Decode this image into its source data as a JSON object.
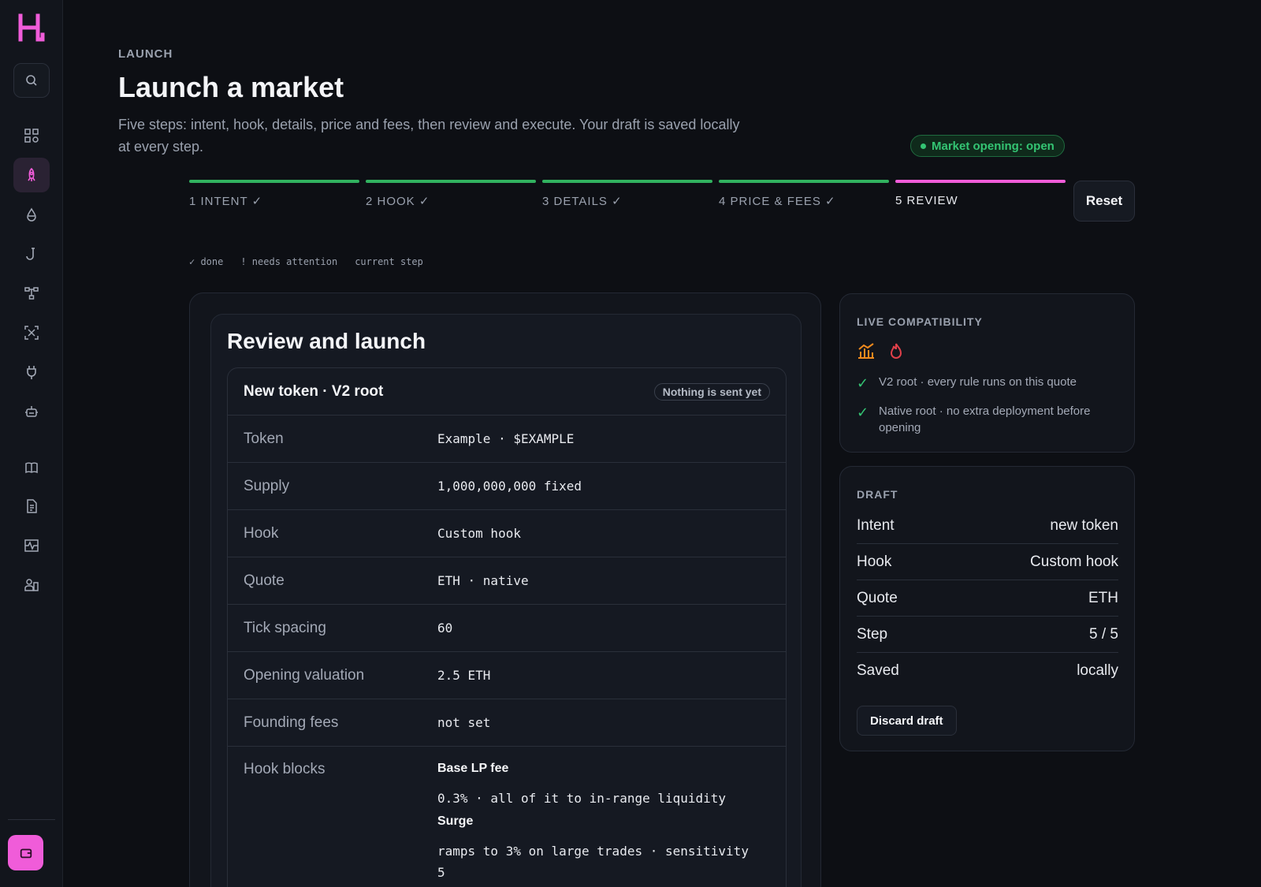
{
  "header": {
    "eyebrow": "LAUNCH",
    "title": "Launch a market",
    "subtitle": "Five steps: intent, hook, details, price and fees, then review and execute. Your draft is saved locally at every step.",
    "status": "Market opening: open"
  },
  "stepper": {
    "steps": [
      {
        "label": "1 INTENT ✓",
        "state": "done"
      },
      {
        "label": "2 HOOK ✓",
        "state": "done"
      },
      {
        "label": "3 DETAILS ✓",
        "state": "done"
      },
      {
        "label": "4 PRICE & FEES ✓",
        "state": "done"
      },
      {
        "label": "5 REVIEW",
        "state": "current"
      }
    ],
    "reset_label": "Reset",
    "legend": {
      "done": "✓ done",
      "attention": "! needs attention",
      "current": "current step"
    }
  },
  "review": {
    "title": "Review and launch",
    "summary_title": "New token · V2 root",
    "badge": "Nothing is sent yet",
    "rows": [
      {
        "key": "Token",
        "value": "Example · $EXAMPLE"
      },
      {
        "key": "Supply",
        "value": "1,000,000,000 fixed"
      },
      {
        "key": "Hook",
        "value": "Custom hook"
      },
      {
        "key": "Quote",
        "value": "ETH · native"
      },
      {
        "key": "Tick spacing",
        "value": "60"
      },
      {
        "key": "Opening valuation",
        "value": "2.5 ETH"
      },
      {
        "key": "Founding fees",
        "value": "not set"
      }
    ],
    "hook_blocks_label": "Hook blocks",
    "hook_blocks": [
      {
        "name": "Base LP fee",
        "desc": "0.3% · all of it to in-range liquidity"
      },
      {
        "name": "Surge",
        "desc": "ramps to 3% on large trades · sensitivity 5"
      }
    ]
  },
  "compatibility": {
    "title": "LIVE COMPATIBILITY",
    "items": [
      "V2 root · every rule runs on this quote",
      "Native root · no extra deployment before opening"
    ]
  },
  "draft": {
    "title": "DRAFT",
    "rows": [
      {
        "key": "Intent",
        "value": "new token"
      },
      {
        "key": "Hook",
        "value": "Custom hook"
      },
      {
        "key": "Quote",
        "value": "ETH"
      },
      {
        "key": "Step",
        "value": "5 / 5"
      },
      {
        "key": "Saved",
        "value": "locally"
      }
    ],
    "discard_label": "Discard draft"
  },
  "colors": {
    "accent": "#f05cd9",
    "success": "#34c473",
    "background": "#0d0f14"
  },
  "sidebar": {
    "icons": [
      "search-icon",
      "dashboard-icon",
      "rocket-icon",
      "drop-icon",
      "hook-icon",
      "network-icon",
      "scan-icon",
      "plug-icon",
      "robot-icon",
      "book-icon",
      "document-icon",
      "activity-icon",
      "users-icon",
      "wallet-icon"
    ]
  }
}
